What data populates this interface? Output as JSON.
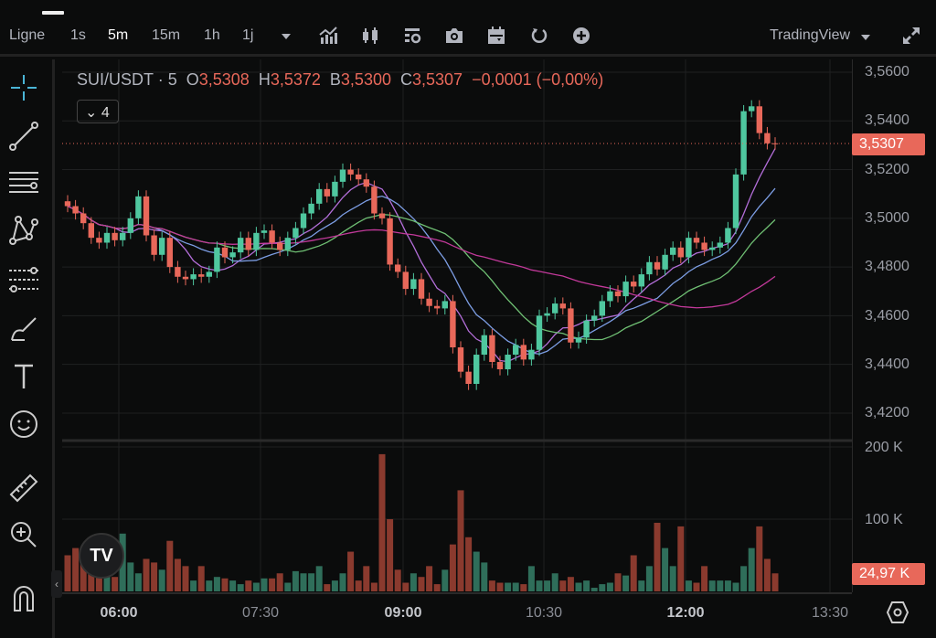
{
  "toolbar": {
    "chart_type": "Ligne",
    "intervals": [
      "1s",
      "5m",
      "15m",
      "1h",
      "1j"
    ],
    "active_interval": "5m",
    "brand": "TradingView"
  },
  "legend": {
    "symbol": "SUI/USDT",
    "interval": "· 5",
    "o_label": "O",
    "o": "3,5308",
    "h_label": "H",
    "h": "3,5372",
    "l_label": "B",
    "l": "3,5300",
    "c_label": "C",
    "c": "3,5307",
    "change": "−0,0001 (−0,00%)",
    "indicators_count": "4"
  },
  "price_axis": {
    "labels": [
      "3,5600",
      "3,5400",
      "3,5200",
      "3,5000",
      "3,4800",
      "3,4600",
      "3,4400",
      "3,4200"
    ],
    "levels": [
      3.56,
      3.54,
      3.52,
      3.5,
      3.48,
      3.46,
      3.44,
      3.42
    ],
    "last_price": "3,5307",
    "last_price_value": 3.5307
  },
  "volume_axis": {
    "labels": [
      "200 K",
      "100 K"
    ],
    "levels": [
      200,
      100
    ],
    "last_volume": "24,97 K"
  },
  "time_axis": {
    "labels": [
      "06:00",
      "07:30",
      "09:00",
      "10:30",
      "12:00",
      "13:30"
    ],
    "bold": [
      true,
      false,
      true,
      false,
      true,
      false
    ]
  },
  "colors": {
    "up": "#4fc79f",
    "down": "#e8685a",
    "vol_up": "#2f6e5a",
    "vol_down": "#8a3a2e",
    "ma": [
      "#b36ed9",
      "#7c9de3",
      "#6fbf73",
      "#c2399a"
    ]
  },
  "chart_data": {
    "type": "candlestick",
    "interval": "5m",
    "ylim": [
      3.415,
      3.565
    ],
    "volume_ylim": [
      0,
      210
    ],
    "close": [
      3.505,
      3.502,
      3.498,
      3.492,
      3.49,
      3.494,
      3.491,
      3.494,
      3.5,
      3.509,
      3.493,
      3.485,
      3.492,
      3.48,
      3.476,
      3.475,
      3.477,
      3.476,
      3.478,
      3.488,
      3.484,
      3.486,
      3.492,
      3.487,
      3.494,
      3.495,
      3.49,
      3.487,
      3.492,
      3.496,
      3.502,
      3.506,
      3.512,
      3.509,
      3.515,
      3.52,
      3.518,
      3.516,
      3.513,
      3.502,
      3.5,
      3.481,
      3.478,
      3.471,
      3.475,
      3.467,
      3.464,
      3.463,
      3.466,
      3.447,
      3.437,
      3.432,
      3.444,
      3.452,
      3.441,
      3.438,
      3.444,
      3.448,
      3.442,
      3.446,
      3.46,
      3.461,
      3.465,
      3.463,
      3.449,
      3.451,
      3.458,
      3.46,
      3.466,
      3.47,
      3.468,
      3.474,
      3.472,
      3.477,
      3.482,
      3.479,
      3.485,
      3.488,
      3.484,
      3.492,
      3.49,
      3.487,
      3.488,
      3.49,
      3.496,
      3.518,
      3.544,
      3.546,
      3.535,
      3.5308,
      3.5307
    ],
    "volume": [
      50,
      60,
      45,
      60,
      25,
      45,
      20,
      80,
      40,
      25,
      45,
      40,
      30,
      70,
      45,
      35,
      15,
      35,
      15,
      20,
      18,
      15,
      10,
      15,
      12,
      18,
      18,
      25,
      12,
      28,
      25,
      25,
      35,
      10,
      15,
      25,
      55,
      15,
      35,
      12,
      190,
      100,
      30,
      12,
      25,
      20,
      35,
      10,
      30,
      65,
      140,
      75,
      55,
      40,
      15,
      12,
      12,
      12,
      10,
      35,
      15,
      15,
      25,
      15,
      20,
      12,
      15,
      5,
      10,
      12,
      25,
      22,
      50,
      15,
      35,
      95,
      60,
      35,
      90,
      15,
      12,
      35,
      15,
      15,
      15,
      12,
      35,
      60,
      90,
      45,
      24.97
    ]
  }
}
